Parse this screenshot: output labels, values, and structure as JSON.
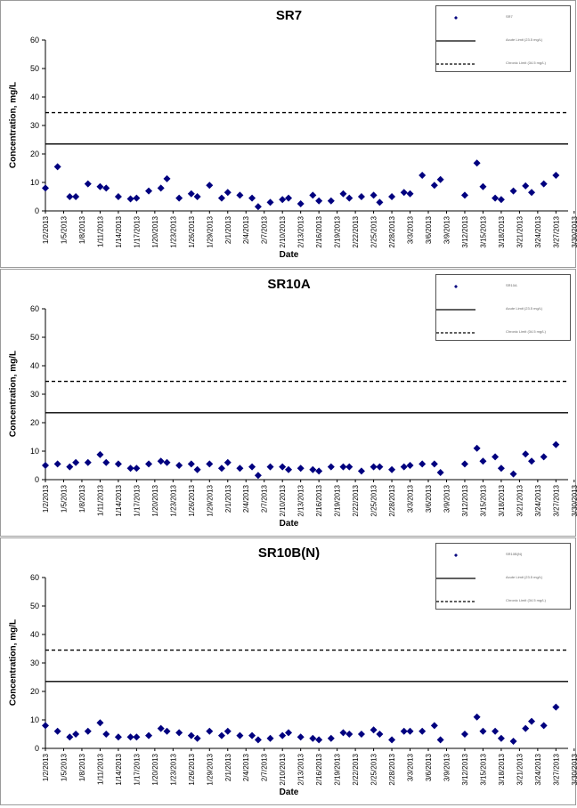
{
  "chart_data": [
    {
      "type": "scatter",
      "title": "SR7",
      "xlabel": "Date",
      "ylabel": "Concentration, mg/L",
      "ylim": [
        0,
        60
      ],
      "yticks": [
        0,
        10,
        20,
        30,
        40,
        50,
        60
      ],
      "x_tick_labels": [
        "1/2/2013",
        "1/5/2013",
        "1/8/2013",
        "1/11/2013",
        "1/14/2013",
        "1/17/2013",
        "1/20/2013",
        "1/23/2013",
        "1/26/2013",
        "1/29/2013",
        "2/1/2013",
        "2/4/2013",
        "2/7/2013",
        "2/10/2013",
        "2/13/2013",
        "2/16/2013",
        "2/19/2013",
        "2/22/2013",
        "2/25/2013",
        "2/28/2013",
        "3/3/2013",
        "3/6/2013",
        "3/9/2013",
        "3/12/2013",
        "3/15/2013",
        "3/18/2013",
        "3/21/2013",
        "3/24/2013",
        "3/27/2013",
        "3/30/2013",
        "4/2/2013",
        "4/5/2013",
        "4/8/2013",
        "4/11/2013",
        "4/14/2013",
        "4/17/2013",
        "4/20/2013",
        "4/23/2013",
        "4/26/2013",
        "4/29/2013"
      ],
      "legend": {
        "placement": "top-right",
        "entries": [
          "SR7",
          "Acute Limit (23.5 mg/L)",
          "Chronic Limit (34.5 mg/L)"
        ]
      },
      "reference_lines": [
        {
          "value": 23.5,
          "style": "solid"
        },
        {
          "value": 34.5,
          "style": "dashed"
        }
      ],
      "color": "#00007f",
      "points": [
        [
          0,
          8
        ],
        [
          2,
          15.5
        ],
        [
          4,
          5
        ],
        [
          5,
          5
        ],
        [
          7,
          9.5
        ],
        [
          9,
          8.5
        ],
        [
          10,
          8
        ],
        [
          12,
          5
        ],
        [
          14,
          4.2
        ],
        [
          15,
          4.5
        ],
        [
          17,
          7
        ],
        [
          19,
          8
        ],
        [
          20,
          11.3
        ],
        [
          22,
          4.5
        ],
        [
          24,
          6
        ],
        [
          25,
          5
        ],
        [
          27,
          9
        ],
        [
          29,
          4.5
        ],
        [
          30,
          6.5
        ],
        [
          32,
          5.5
        ],
        [
          34,
          4.5
        ],
        [
          35,
          1.5
        ],
        [
          37,
          3
        ],
        [
          39,
          4
        ],
        [
          40,
          4.5
        ],
        [
          42,
          2.5
        ],
        [
          44,
          5.5
        ],
        [
          45,
          3.5
        ],
        [
          47,
          3.5
        ],
        [
          49,
          6
        ],
        [
          50,
          4.5
        ],
        [
          52,
          5
        ],
        [
          54,
          5.5
        ],
        [
          55,
          3
        ],
        [
          57,
          5
        ],
        [
          59,
          6.5
        ],
        [
          60,
          6
        ],
        [
          62,
          12.5
        ],
        [
          64,
          9
        ],
        [
          65,
          11
        ],
        [
          69,
          5.5
        ],
        [
          71,
          16.8
        ],
        [
          72,
          8.5
        ],
        [
          74,
          4.5
        ],
        [
          75,
          4
        ],
        [
          77,
          7
        ],
        [
          79,
          8.8
        ],
        [
          80,
          6.5
        ],
        [
          82,
          9.5
        ],
        [
          84,
          12.5
        ]
      ]
    },
    {
      "type": "scatter",
      "title": "SR10A",
      "xlabel": "Date",
      "ylabel": "Concentration, mg/L",
      "ylim": [
        0,
        60
      ],
      "yticks": [
        0,
        10,
        20,
        30,
        40,
        50,
        60
      ],
      "x_tick_labels": [
        "1/2/2013",
        "1/5/2013",
        "1/8/2013",
        "1/11/2013",
        "1/14/2013",
        "1/17/2013",
        "1/20/2013",
        "1/23/2013",
        "1/26/2013",
        "1/29/2013",
        "2/1/2013",
        "2/4/2013",
        "2/7/2013",
        "2/10/2013",
        "2/13/2013",
        "2/16/2013",
        "2/19/2013",
        "2/22/2013",
        "2/25/2013",
        "2/28/2013",
        "3/3/2013",
        "3/6/2013",
        "3/9/2013",
        "3/12/2013",
        "3/15/2013",
        "3/18/2013",
        "3/21/2013",
        "3/24/2013",
        "3/27/2013",
        "3/30/2013",
        "4/2/2013",
        "4/5/2013",
        "4/8/2013",
        "4/11/2013",
        "4/14/2013",
        "4/17/2013",
        "4/20/2013",
        "4/23/2013",
        "4/26/2013",
        "4/29/2013"
      ],
      "legend": {
        "placement": "top-right",
        "entries": [
          "SR10A",
          "Acute Limit (23.5 mg/L)",
          "Chronic Limit (34.5 mg/L)"
        ]
      },
      "reference_lines": [
        {
          "value": 23.5,
          "style": "solid"
        },
        {
          "value": 34.5,
          "style": "dashed"
        }
      ],
      "color": "#00007f",
      "points": [
        [
          0,
          5
        ],
        [
          2,
          5.5
        ],
        [
          4,
          4.5
        ],
        [
          5,
          6
        ],
        [
          7,
          6
        ],
        [
          9,
          8.8
        ],
        [
          10,
          6
        ],
        [
          12,
          5.5
        ],
        [
          14,
          4
        ],
        [
          15,
          4
        ],
        [
          17,
          5.5
        ],
        [
          19,
          6.5
        ],
        [
          20,
          6
        ],
        [
          22,
          5
        ],
        [
          24,
          5.5
        ],
        [
          25,
          3.5
        ],
        [
          27,
          5.5
        ],
        [
          29,
          4
        ],
        [
          30,
          6
        ],
        [
          32,
          4
        ],
        [
          34,
          4.5
        ],
        [
          35,
          1.5
        ],
        [
          37,
          4.5
        ],
        [
          39,
          4.5
        ],
        [
          40,
          3.5
        ],
        [
          42,
          4
        ],
        [
          44,
          3.5
        ],
        [
          45,
          3
        ],
        [
          47,
          4.5
        ],
        [
          49,
          4.5
        ],
        [
          50,
          4.5
        ],
        [
          52,
          3
        ],
        [
          54,
          4.5
        ],
        [
          55,
          4.5
        ],
        [
          57,
          3.5
        ],
        [
          59,
          4.5
        ],
        [
          60,
          5
        ],
        [
          62,
          5.5
        ],
        [
          64,
          5.5
        ],
        [
          65,
          2.5
        ],
        [
          69,
          5.5
        ],
        [
          71,
          11
        ],
        [
          72,
          6.5
        ],
        [
          74,
          8
        ],
        [
          75,
          4
        ],
        [
          77,
          2
        ],
        [
          79,
          9
        ],
        [
          80,
          6.5
        ],
        [
          82,
          8
        ],
        [
          84,
          12.3
        ]
      ]
    },
    {
      "type": "scatter",
      "title": "SR10B(N)",
      "xlabel": "Date",
      "ylabel": "Concentration, mg/L",
      "ylim": [
        0,
        60
      ],
      "yticks": [
        0,
        10,
        20,
        30,
        40,
        50,
        60
      ],
      "x_tick_labels": [
        "1/2/2013",
        "1/5/2013",
        "1/8/2013",
        "1/11/2013",
        "1/14/2013",
        "1/17/2013",
        "1/20/2013",
        "1/23/2013",
        "1/26/2013",
        "1/29/2013",
        "2/1/2013",
        "2/4/2013",
        "2/7/2013",
        "2/10/2013",
        "2/13/2013",
        "2/16/2013",
        "2/19/2013",
        "2/22/2013",
        "2/25/2013",
        "2/28/2013",
        "3/3/2013",
        "3/6/2013",
        "3/9/2013",
        "3/12/2013",
        "3/15/2013",
        "3/18/2013",
        "3/21/2013",
        "3/24/2013",
        "3/27/2013",
        "3/30/2013",
        "4/2/2013",
        "4/5/2013",
        "4/8/2013",
        "4/11/2013",
        "4/14/2013",
        "4/17/2013",
        "4/20/2013",
        "4/23/2013",
        "4/26/2013",
        "4/29/2013"
      ],
      "legend": {
        "placement": "top-right",
        "entries": [
          "SR10B(N)",
          "Acute Limit (23.5 mg/L)",
          "Chronic Limit (34.5 mg/L)"
        ]
      },
      "reference_lines": [
        {
          "value": 23.5,
          "style": "solid"
        },
        {
          "value": 34.5,
          "style": "dashed"
        }
      ],
      "color": "#00007f",
      "points": [
        [
          0,
          8
        ],
        [
          2,
          6
        ],
        [
          4,
          4
        ],
        [
          5,
          5
        ],
        [
          7,
          6
        ],
        [
          9,
          9
        ],
        [
          10,
          5
        ],
        [
          12,
          4
        ],
        [
          14,
          4
        ],
        [
          15,
          4
        ],
        [
          17,
          4.5
        ],
        [
          19,
          7
        ],
        [
          20,
          6
        ],
        [
          22,
          5.5
        ],
        [
          24,
          4.5
        ],
        [
          25,
          3.5
        ],
        [
          27,
          6
        ],
        [
          29,
          4.5
        ],
        [
          30,
          6
        ],
        [
          32,
          4.5
        ],
        [
          34,
          4.5
        ],
        [
          35,
          3
        ],
        [
          37,
          3.5
        ],
        [
          39,
          4.5
        ],
        [
          40,
          5.5
        ],
        [
          42,
          4
        ],
        [
          44,
          3.5
        ],
        [
          45,
          3
        ],
        [
          47,
          3.5
        ],
        [
          49,
          5.5
        ],
        [
          50,
          5
        ],
        [
          52,
          5
        ],
        [
          54,
          6.5
        ],
        [
          55,
          5
        ],
        [
          57,
          3
        ],
        [
          59,
          6
        ],
        [
          60,
          6
        ],
        [
          62,
          6
        ],
        [
          64,
          8
        ],
        [
          65,
          3
        ],
        [
          69,
          5
        ],
        [
          71,
          11
        ],
        [
          72,
          6
        ],
        [
          74,
          6
        ],
        [
          75,
          3.5
        ],
        [
          77,
          2.5
        ],
        [
          79,
          7
        ],
        [
          80,
          9.5
        ],
        [
          82,
          8
        ],
        [
          84,
          14.5
        ]
      ]
    }
  ]
}
